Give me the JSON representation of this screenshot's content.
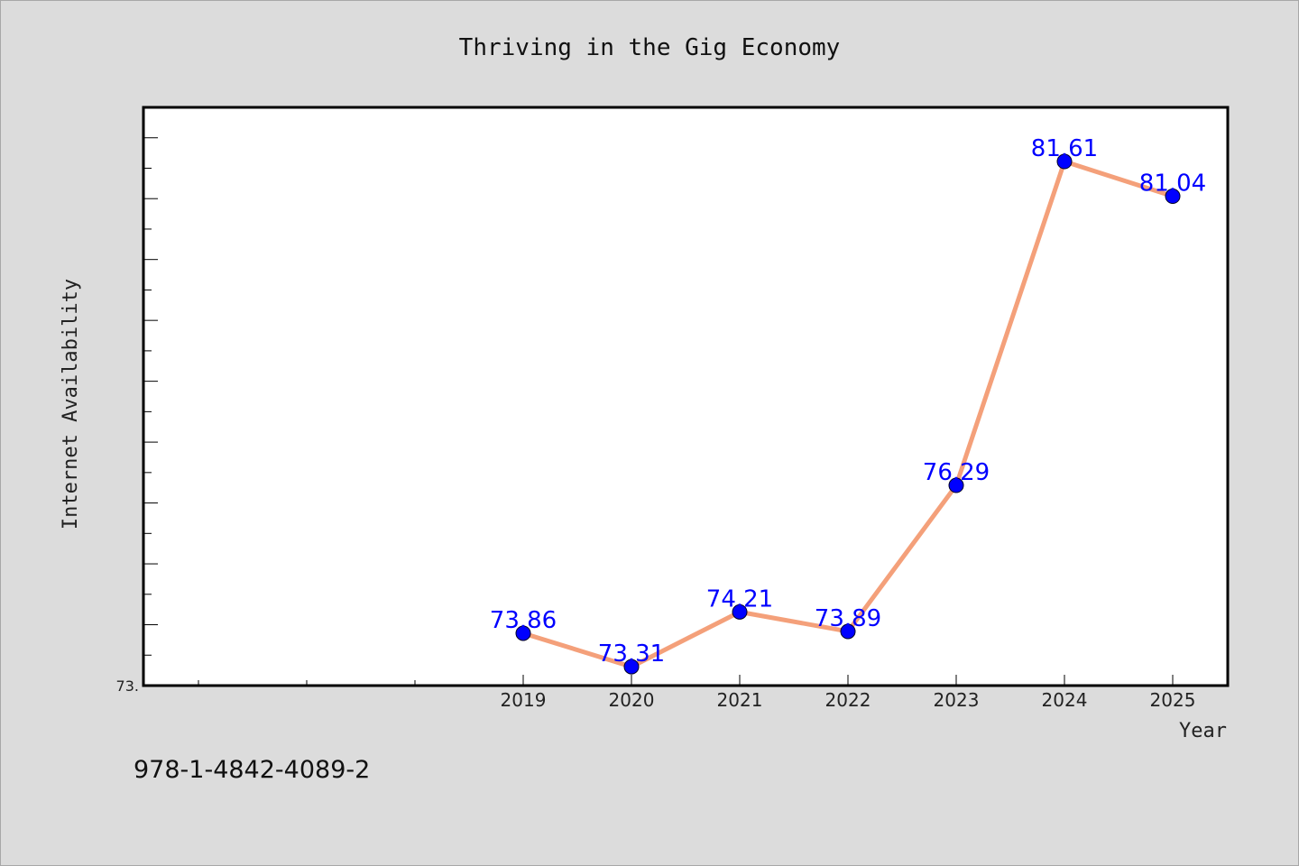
{
  "chart_data": {
    "type": "line",
    "title": "Thriving in the Gig Economy",
    "xlabel": "Year",
    "ylabel": "Internet Availability",
    "categories": [
      "2019",
      "2020",
      "2021",
      "2022",
      "2023",
      "2024",
      "2025"
    ],
    "series": [
      {
        "values": [
          73.86,
          73.31,
          74.21,
          73.89,
          76.29,
          81.61,
          81.04
        ],
        "labels": [
          "73.86",
          "73.31",
          "74.21",
          "73.89",
          "76.29",
          "81.61",
          "81.04"
        ]
      }
    ],
    "ylim": [
      73.0,
      82.5
    ],
    "y_min_label": "73.",
    "grid": false,
    "legend": "none",
    "colors": {
      "line": "#f4a07a",
      "marker": "#0000ff",
      "data_label": "#0000ff",
      "plot_background": "#ffffff",
      "figure_background": "#dcdcdc"
    }
  },
  "isbn": "978-1-4842-4089-2"
}
